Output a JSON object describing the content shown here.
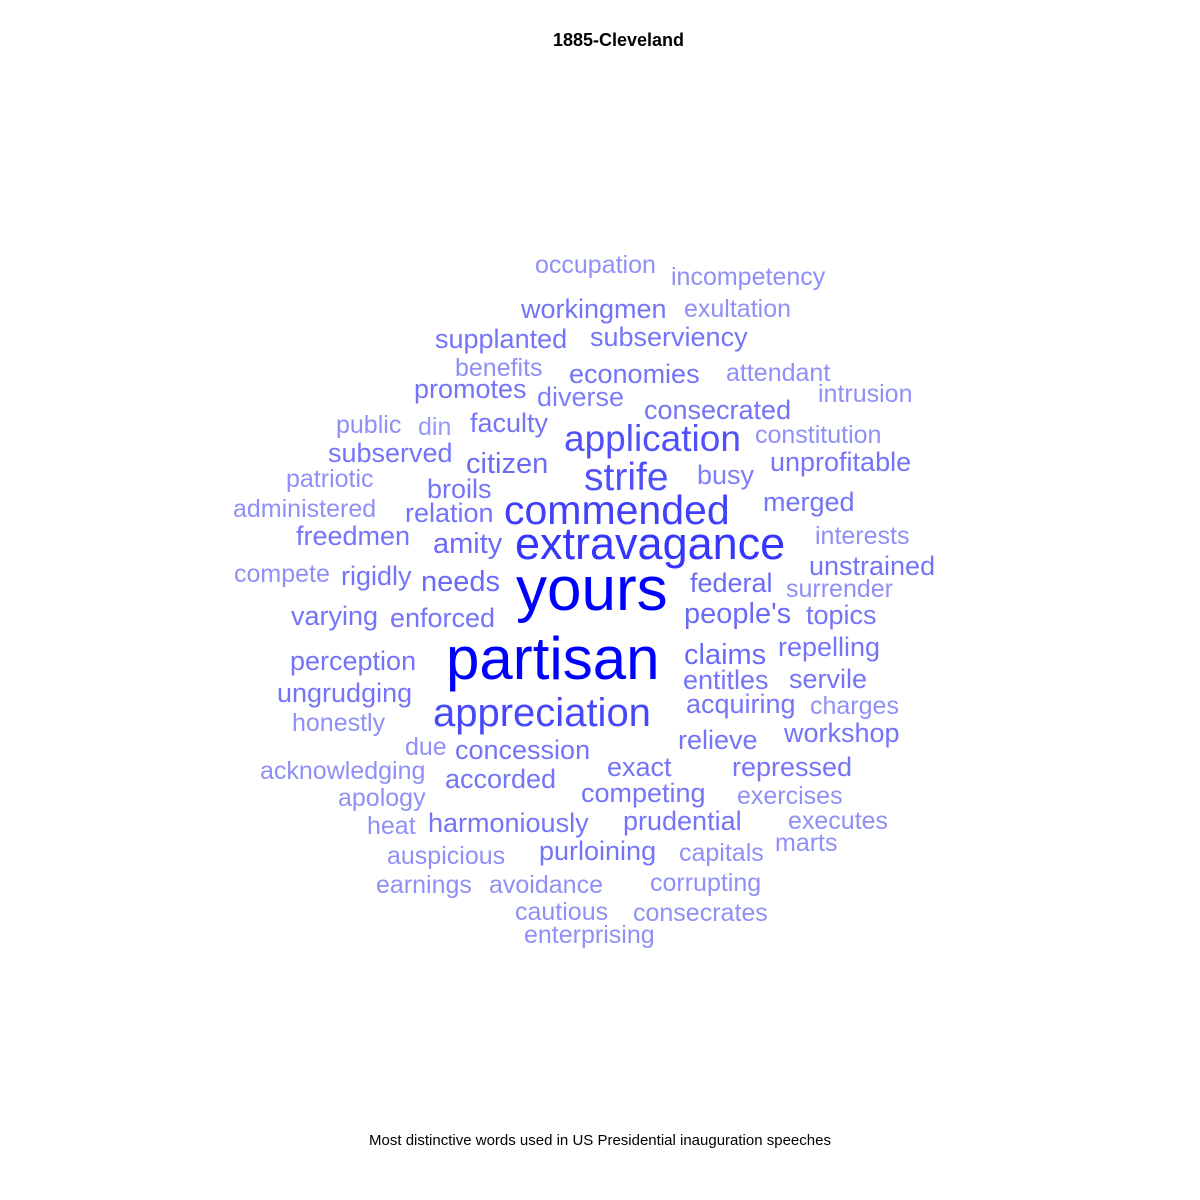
{
  "chart_data": {
    "type": "wordcloud",
    "title": "1885-Cleveland",
    "caption": "Most distinctive words used in US Presidential inauguration speeches",
    "color_scale": [
      "#b3b3f5",
      "#0000ff"
    ],
    "words": [
      {
        "text": "partisan",
        "weight": 1.0
      },
      {
        "text": "yours",
        "weight": 1.0
      },
      {
        "text": "extravagance",
        "weight": 0.7
      },
      {
        "text": "commended",
        "weight": 0.65
      },
      {
        "text": "appreciation",
        "weight": 0.6
      },
      {
        "text": "application",
        "weight": 0.55
      },
      {
        "text": "strife",
        "weight": 0.55
      },
      {
        "text": "occupation",
        "weight": 0.2
      },
      {
        "text": "incompetency",
        "weight": 0.2
      },
      {
        "text": "workingmen",
        "weight": 0.35
      },
      {
        "text": "exultation",
        "weight": 0.2
      },
      {
        "text": "supplanted",
        "weight": 0.35
      },
      {
        "text": "subserviency",
        "weight": 0.35
      },
      {
        "text": "benefits",
        "weight": 0.2
      },
      {
        "text": "economies",
        "weight": 0.35
      },
      {
        "text": "attendant",
        "weight": 0.2
      },
      {
        "text": "promotes",
        "weight": 0.35
      },
      {
        "text": "diverse",
        "weight": 0.3
      },
      {
        "text": "intrusion",
        "weight": 0.2
      },
      {
        "text": "consecrated",
        "weight": 0.35
      },
      {
        "text": "public",
        "weight": 0.2
      },
      {
        "text": "din",
        "weight": 0.15
      },
      {
        "text": "faculty",
        "weight": 0.35
      },
      {
        "text": "constitution",
        "weight": 0.2
      },
      {
        "text": "subserved",
        "weight": 0.35
      },
      {
        "text": "citizen",
        "weight": 0.4
      },
      {
        "text": "busy",
        "weight": 0.3
      },
      {
        "text": "unprofitable",
        "weight": 0.35
      },
      {
        "text": "patriotic",
        "weight": 0.2
      },
      {
        "text": "broils",
        "weight": 0.35
      },
      {
        "text": "merged",
        "weight": 0.35
      },
      {
        "text": "administered",
        "weight": 0.2
      },
      {
        "text": "relation",
        "weight": 0.35
      },
      {
        "text": "interests",
        "weight": 0.2
      },
      {
        "text": "freedmen",
        "weight": 0.35
      },
      {
        "text": "amity",
        "weight": 0.4
      },
      {
        "text": "unstrained",
        "weight": 0.35
      },
      {
        "text": "compete",
        "weight": 0.2
      },
      {
        "text": "rigidly",
        "weight": 0.35
      },
      {
        "text": "needs",
        "weight": 0.4
      },
      {
        "text": "federal",
        "weight": 0.4
      },
      {
        "text": "surrender",
        "weight": 0.2
      },
      {
        "text": "varying",
        "weight": 0.35
      },
      {
        "text": "enforced",
        "weight": 0.35
      },
      {
        "text": "people's",
        "weight": 0.4
      },
      {
        "text": "topics",
        "weight": 0.35
      },
      {
        "text": "perception",
        "weight": 0.35
      },
      {
        "text": "claims",
        "weight": 0.4
      },
      {
        "text": "repelling",
        "weight": 0.35
      },
      {
        "text": "ungrudging",
        "weight": 0.35
      },
      {
        "text": "entitles",
        "weight": 0.35
      },
      {
        "text": "servile",
        "weight": 0.35
      },
      {
        "text": "honestly",
        "weight": 0.2
      },
      {
        "text": "acquiring",
        "weight": 0.35
      },
      {
        "text": "charges",
        "weight": 0.2
      },
      {
        "text": "due",
        "weight": 0.2
      },
      {
        "text": "concession",
        "weight": 0.35
      },
      {
        "text": "relieve",
        "weight": 0.35
      },
      {
        "text": "workshop",
        "weight": 0.35
      },
      {
        "text": "acknowledging",
        "weight": 0.2
      },
      {
        "text": "accorded",
        "weight": 0.35
      },
      {
        "text": "exact",
        "weight": 0.35
      },
      {
        "text": "repressed",
        "weight": 0.35
      },
      {
        "text": "apology",
        "weight": 0.2
      },
      {
        "text": "competing",
        "weight": 0.35
      },
      {
        "text": "exercises",
        "weight": 0.2
      },
      {
        "text": "heat",
        "weight": 0.2
      },
      {
        "text": "harmoniously",
        "weight": 0.35
      },
      {
        "text": "prudential",
        "weight": 0.35
      },
      {
        "text": "executes",
        "weight": 0.2
      },
      {
        "text": "marts",
        "weight": 0.2
      },
      {
        "text": "auspicious",
        "weight": 0.2
      },
      {
        "text": "purloining",
        "weight": 0.35
      },
      {
        "text": "capitals",
        "weight": 0.2
      },
      {
        "text": "earnings",
        "weight": 0.2
      },
      {
        "text": "avoidance",
        "weight": 0.2
      },
      {
        "text": "corrupting",
        "weight": 0.2
      },
      {
        "text": "cautious",
        "weight": 0.2
      },
      {
        "text": "consecrates",
        "weight": 0.2
      },
      {
        "text": "enterprising",
        "weight": 0.2
      }
    ]
  }
}
